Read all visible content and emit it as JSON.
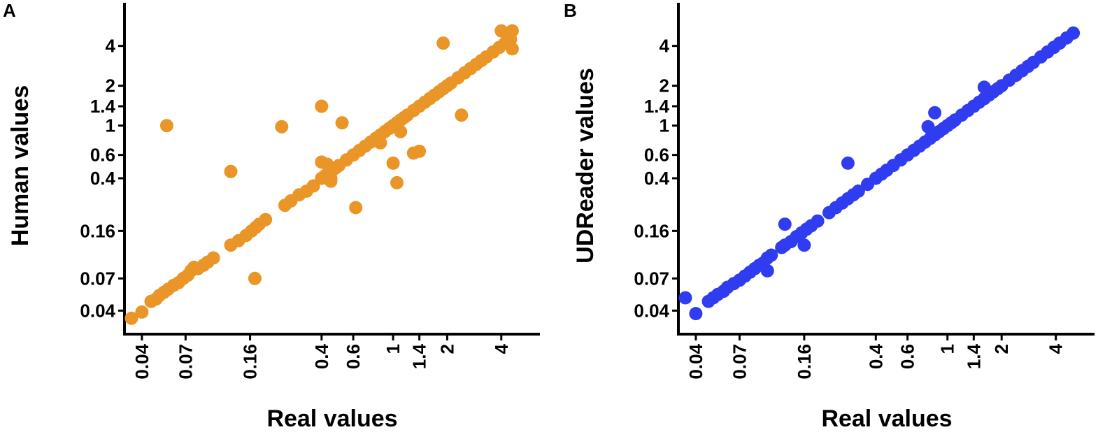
{
  "chart_data": [
    {
      "type": "scatter",
      "panel_label": "A",
      "xlabel": "Real values",
      "ylabel": "Human values",
      "scale": "log",
      "xlim": [
        0.035,
        6.0
      ],
      "ylim": [
        0.03,
        7.5
      ],
      "xticks": [
        "0.04",
        "0.07",
        "0.16",
        "0.4",
        "0.6",
        "1",
        "1.4",
        "2",
        "4"
      ],
      "yticks": [
        "0.04",
        "0.07",
        "0.16",
        "0.4",
        "0.6",
        "1",
        "1.4",
        "2",
        "4"
      ],
      "color": "#ea9527",
      "points": [
        [
          0.035,
          0.035
        ],
        [
          0.04,
          0.039
        ],
        [
          0.045,
          0.047
        ],
        [
          0.048,
          0.049
        ],
        [
          0.05,
          0.052
        ],
        [
          0.053,
          0.055
        ],
        [
          0.056,
          0.058
        ],
        [
          0.06,
          0.062
        ],
        [
          0.064,
          0.065
        ],
        [
          0.068,
          0.07
        ],
        [
          0.072,
          0.074
        ],
        [
          0.075,
          0.08
        ],
        [
          0.078,
          0.085
        ],
        [
          0.082,
          0.083
        ],
        [
          0.088,
          0.088
        ],
        [
          0.093,
          0.093
        ],
        [
          0.1,
          0.1
        ],
        [
          0.125,
          0.125
        ],
        [
          0.138,
          0.135
        ],
        [
          0.152,
          0.148
        ],
        [
          0.163,
          0.16
        ],
        [
          0.172,
          0.17
        ],
        [
          0.18,
          0.18
        ],
        [
          0.195,
          0.195
        ],
        [
          0.25,
          0.25
        ],
        [
          0.27,
          0.27
        ],
        [
          0.3,
          0.3
        ],
        [
          0.33,
          0.32
        ],
        [
          0.36,
          0.35
        ],
        [
          0.4,
          0.4
        ],
        [
          0.42,
          0.42
        ],
        [
          0.44,
          0.44
        ],
        [
          0.46,
          0.46
        ],
        [
          0.48,
          0.48
        ],
        [
          0.5,
          0.5
        ],
        [
          0.55,
          0.55
        ],
        [
          0.6,
          0.6
        ],
        [
          0.65,
          0.65
        ],
        [
          0.7,
          0.7
        ],
        [
          0.75,
          0.75
        ],
        [
          0.8,
          0.8
        ],
        [
          0.85,
          0.85
        ],
        [
          0.9,
          0.9
        ],
        [
          0.95,
          0.95
        ],
        [
          1.0,
          1.0
        ],
        [
          1.05,
          1.05
        ],
        [
          1.1,
          1.1
        ],
        [
          1.15,
          1.15
        ],
        [
          1.2,
          1.2
        ],
        [
          1.3,
          1.3
        ],
        [
          1.4,
          1.4
        ],
        [
          1.5,
          1.5
        ],
        [
          1.6,
          1.6
        ],
        [
          1.7,
          1.7
        ],
        [
          1.8,
          1.8
        ],
        [
          1.9,
          1.9
        ],
        [
          2.0,
          2.0
        ],
        [
          2.1,
          2.1
        ],
        [
          2.3,
          2.3
        ],
        [
          2.5,
          2.5
        ],
        [
          2.7,
          2.7
        ],
        [
          2.9,
          2.9
        ],
        [
          3.1,
          3.1
        ],
        [
          3.3,
          3.3
        ],
        [
          3.6,
          3.6
        ],
        [
          3.9,
          3.9
        ],
        [
          4.2,
          4.2
        ],
        [
          4.5,
          4.5
        ],
        [
          0.055,
          1.0
        ],
        [
          0.125,
          0.45
        ],
        [
          0.17,
          0.07
        ],
        [
          0.24,
          0.98
        ],
        [
          0.4,
          1.4
        ],
        [
          0.4,
          0.53
        ],
        [
          0.43,
          0.51
        ],
        [
          0.45,
          0.4
        ],
        [
          0.45,
          0.38
        ],
        [
          0.52,
          1.05
        ],
        [
          0.62,
          0.24
        ],
        [
          0.85,
          0.74
        ],
        [
          1.0,
          0.52
        ],
        [
          1.05,
          0.37
        ],
        [
          1.1,
          0.9
        ],
        [
          1.3,
          0.62
        ],
        [
          1.4,
          0.64
        ],
        [
          1.9,
          4.2
        ],
        [
          2.4,
          1.2
        ],
        [
          4.0,
          5.2
        ],
        [
          4.6,
          5.2
        ],
        [
          4.6,
          3.8
        ]
      ]
    },
    {
      "type": "scatter",
      "panel_label": "B",
      "xlabel": "Real values",
      "ylabel": "UDReader values",
      "scale": "log",
      "xlim": [
        0.035,
        6.0
      ],
      "ylim": [
        0.03,
        7.5
      ],
      "xticks": [
        "0.04",
        "0.07",
        "0.16",
        "0.4",
        "0.6",
        "1",
        "1.4",
        "2",
        "4"
      ],
      "yticks": [
        "0.04",
        "0.07",
        "0.16",
        "0.4",
        "0.6",
        "1",
        "1.4",
        "2",
        "4"
      ],
      "color": "#2f3cf0",
      "points": [
        [
          0.035,
          0.05
        ],
        [
          0.04,
          0.038
        ],
        [
          0.047,
          0.047
        ],
        [
          0.05,
          0.05
        ],
        [
          0.053,
          0.053
        ],
        [
          0.057,
          0.056
        ],
        [
          0.06,
          0.06
        ],
        [
          0.065,
          0.064
        ],
        [
          0.07,
          0.068
        ],
        [
          0.075,
          0.073
        ],
        [
          0.08,
          0.078
        ],
        [
          0.085,
          0.083
        ],
        [
          0.09,
          0.088
        ],
        [
          0.095,
          0.092
        ],
        [
          0.1,
          0.1
        ],
        [
          0.105,
          0.105
        ],
        [
          0.1,
          0.08
        ],
        [
          0.12,
          0.12
        ],
        [
          0.125,
          0.125
        ],
        [
          0.135,
          0.133
        ],
        [
          0.145,
          0.145
        ],
        [
          0.155,
          0.155
        ],
        [
          0.165,
          0.165
        ],
        [
          0.175,
          0.175
        ],
        [
          0.19,
          0.19
        ],
        [
          0.22,
          0.22
        ],
        [
          0.24,
          0.24
        ],
        [
          0.26,
          0.26
        ],
        [
          0.28,
          0.28
        ],
        [
          0.3,
          0.3
        ],
        [
          0.32,
          0.32
        ],
        [
          0.36,
          0.36
        ],
        [
          0.4,
          0.4
        ],
        [
          0.43,
          0.43
        ],
        [
          0.46,
          0.46
        ],
        [
          0.5,
          0.5
        ],
        [
          0.55,
          0.55
        ],
        [
          0.6,
          0.6
        ],
        [
          0.65,
          0.65
        ],
        [
          0.7,
          0.7
        ],
        [
          0.75,
          0.75
        ],
        [
          0.8,
          0.8
        ],
        [
          0.85,
          0.85
        ],
        [
          0.9,
          0.9
        ],
        [
          0.95,
          0.95
        ],
        [
          1.0,
          1.0
        ],
        [
          1.05,
          1.05
        ],
        [
          1.1,
          1.1
        ],
        [
          1.2,
          1.2
        ],
        [
          1.3,
          1.3
        ],
        [
          1.4,
          1.4
        ],
        [
          1.5,
          1.5
        ],
        [
          1.6,
          1.6
        ],
        [
          1.7,
          1.7
        ],
        [
          1.8,
          1.8
        ],
        [
          1.9,
          1.9
        ],
        [
          2.0,
          2.0
        ],
        [
          2.2,
          2.2
        ],
        [
          2.4,
          2.4
        ],
        [
          2.6,
          2.6
        ],
        [
          2.8,
          2.8
        ],
        [
          3.0,
          3.0
        ],
        [
          3.3,
          3.3
        ],
        [
          3.6,
          3.6
        ],
        [
          3.9,
          3.9
        ],
        [
          4.2,
          4.2
        ],
        [
          4.6,
          4.6
        ],
        [
          5.0,
          5.0
        ],
        [
          0.125,
          0.18
        ],
        [
          0.16,
          0.125
        ],
        [
          0.28,
          0.52
        ],
        [
          0.78,
          0.98
        ],
        [
          0.85,
          1.25
        ],
        [
          1.6,
          1.95
        ]
      ]
    }
  ]
}
